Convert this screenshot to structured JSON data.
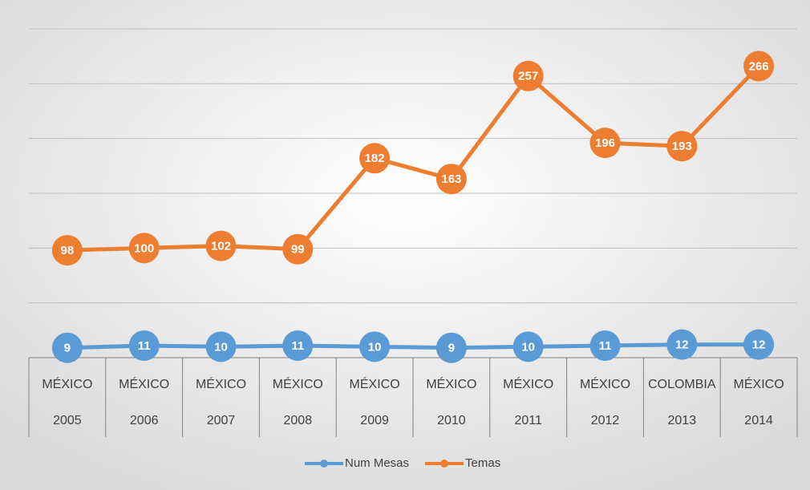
{
  "chart_data": {
    "type": "line",
    "categories": [
      [
        "MÉXICO",
        "2005"
      ],
      [
        "MÉXICO",
        "2006"
      ],
      [
        "MÉXICO",
        "2007"
      ],
      [
        "MÉXICO",
        "2008"
      ],
      [
        "MÉXICO",
        "2009"
      ],
      [
        "MÉXICO",
        "2010"
      ],
      [
        "MÉXICO",
        "2011"
      ],
      [
        "MÉXICO",
        "2012"
      ],
      [
        "COLOMBIA",
        "2013"
      ],
      [
        "MÉXICO",
        "2014"
      ]
    ],
    "series": [
      {
        "name": "Num Mesas",
        "color": "#5b9bd5",
        "values": [
          9,
          11,
          10,
          11,
          10,
          9,
          10,
          11,
          12,
          12
        ]
      },
      {
        "name": "Temas",
        "color": "#ed7d31",
        "values": [
          98,
          100,
          102,
          99,
          182,
          163,
          257,
          196,
          193,
          266
        ]
      }
    ],
    "ylim": [
      0,
      300
    ],
    "yticks": [
      0,
      50,
      100,
      150,
      200,
      250,
      300
    ],
    "grid": true,
    "legend": "bottom"
  }
}
